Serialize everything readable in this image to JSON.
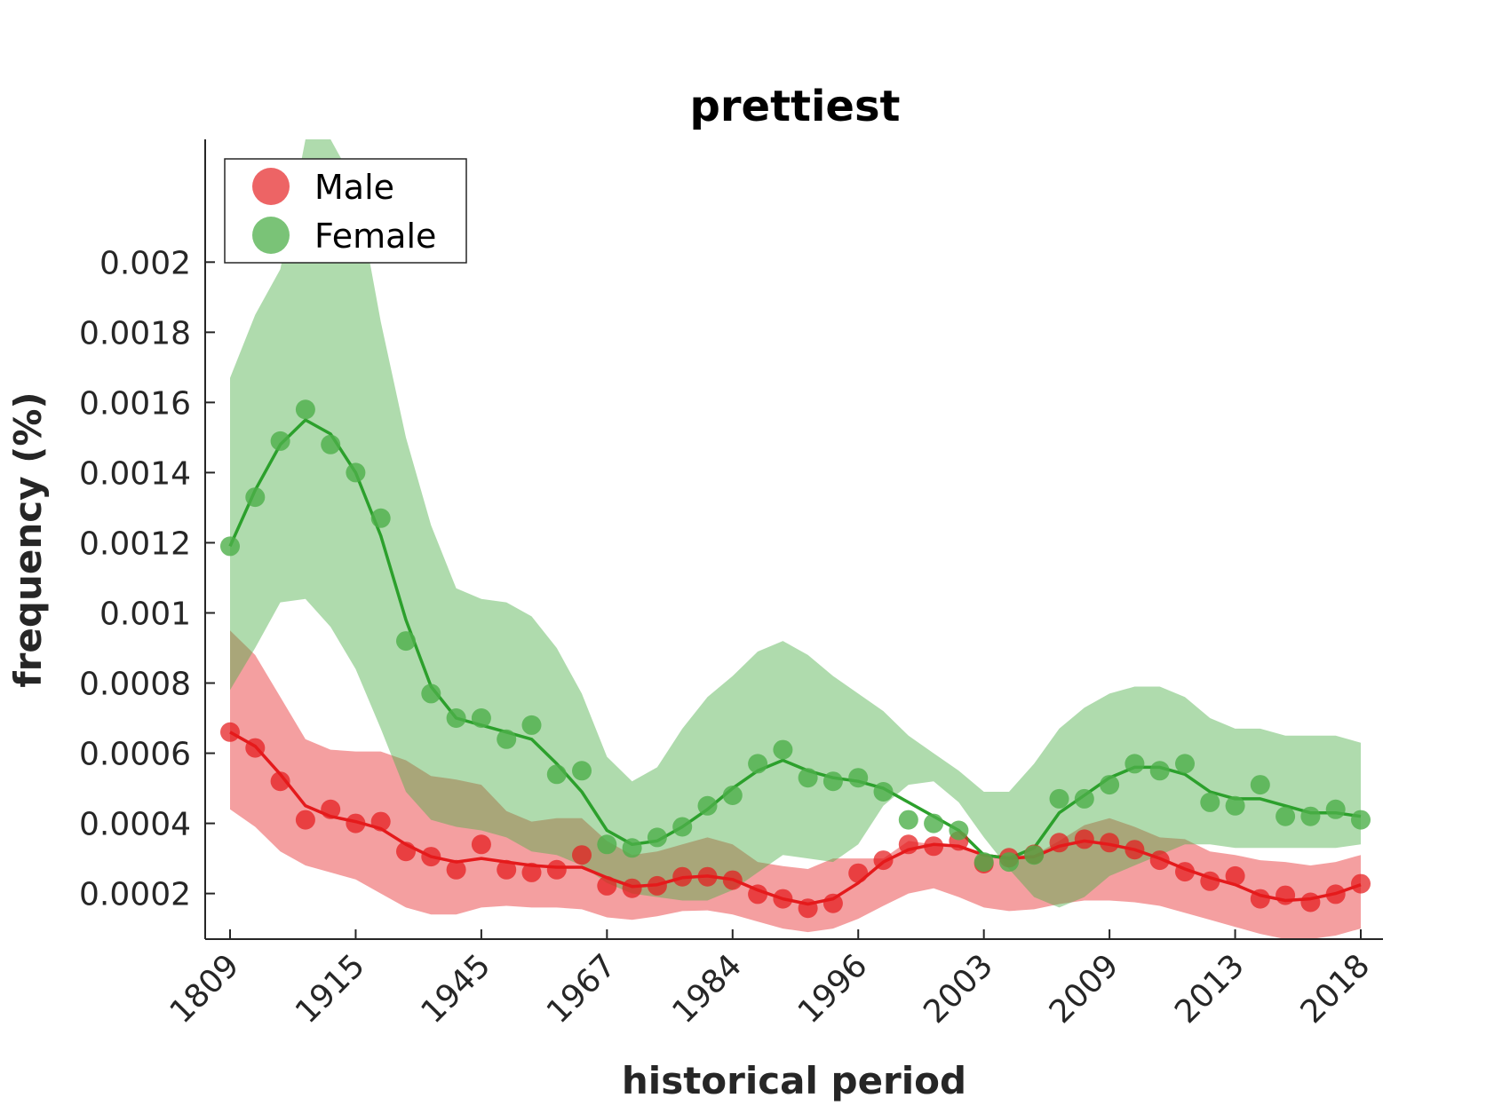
{
  "chart_data": {
    "type": "line",
    "title": "prettiest",
    "xlabel": "historical period",
    "ylabel": "frequency (%)",
    "x_tick_labels": [
      "1809",
      "1915",
      "1945",
      "1967",
      "1984",
      "1996",
      "2003",
      "2009",
      "2013",
      "2018"
    ],
    "y_ticks": [
      0.0002,
      0.0004,
      0.0006,
      0.0008,
      0.001,
      0.0012,
      0.0014,
      0.0016,
      0.0018,
      0.002
    ],
    "y_tick_labels": [
      "0.0002",
      "0.0004",
      "0.0006",
      "0.0008",
      "0.001",
      "0.0012",
      "0.0014",
      "0.0016",
      "0.0018",
      "0.002"
    ],
    "ylim": [
      7e-05,
      0.00235
    ],
    "x_index_range": [
      0,
      45
    ],
    "grid": false,
    "legend_position": "top-left",
    "series": [
      {
        "name": "Male",
        "color": "#e41a1c",
        "marker_color": "#e41a1c",
        "band_color": "#e41a1c",
        "points": [
          0.00066,
          0.000615,
          0.00052,
          0.00041,
          0.00044,
          0.0004,
          0.000405,
          0.00032,
          0.000305,
          0.000268,
          0.00034,
          0.000268,
          0.00026,
          0.000268,
          0.00031,
          0.000222,
          0.000215,
          0.000222,
          0.000248,
          0.000248,
          0.000238,
          0.000198,
          0.000185,
          0.000158,
          0.000172,
          0.000258,
          0.000295,
          0.00034,
          0.000335,
          0.00035,
          0.000285,
          0.000302,
          0.000312,
          0.000345,
          0.000355,
          0.000345,
          0.000325,
          0.000295,
          0.000262,
          0.000235,
          0.00025,
          0.000185,
          0.000195,
          0.000175,
          0.000198,
          0.000228
        ],
        "smooth": [
          0.00066,
          0.00062,
          0.00054,
          0.00045,
          0.00042,
          0.000405,
          0.000385,
          0.00034,
          0.000305,
          0.00029,
          0.0003,
          0.00029,
          0.00028,
          0.000275,
          0.000275,
          0.000245,
          0.00022,
          0.000225,
          0.000245,
          0.00025,
          0.00024,
          0.00021,
          0.000185,
          0.00017,
          0.000185,
          0.00023,
          0.00029,
          0.000325,
          0.00034,
          0.000335,
          0.00031,
          0.0003,
          0.000305,
          0.000335,
          0.00035,
          0.00034,
          0.000325,
          0.0003,
          0.00027,
          0.000245,
          0.000225,
          0.000195,
          0.00018,
          0.000185,
          0.0002,
          0.000225
        ],
        "band_upper": [
          0.00095,
          0.00088,
          0.00076,
          0.00064,
          0.00061,
          0.000605,
          0.000605,
          0.00058,
          0.000535,
          0.000525,
          0.00051,
          0.000435,
          0.000405,
          0.000415,
          0.000415,
          0.00035,
          0.00031,
          0.00032,
          0.00034,
          0.00036,
          0.00034,
          0.00029,
          0.000278,
          0.00027,
          0.0003,
          0.0003,
          0.0003,
          0.00035,
          0.00034,
          0.00033,
          0.00031,
          0.00031,
          0.00031,
          0.00035,
          0.000395,
          0.000415,
          0.00039,
          0.00036,
          0.000355,
          0.00032,
          0.00031,
          0.000295,
          0.00029,
          0.00028,
          0.00029,
          0.00031
        ],
        "band_lower": [
          0.00044,
          0.00039,
          0.00032,
          0.00028,
          0.00026,
          0.00024,
          0.0002,
          0.00016,
          0.00014,
          0.00014,
          0.00016,
          0.000165,
          0.00016,
          0.00016,
          0.000155,
          0.000132,
          0.000125,
          0.000135,
          0.00015,
          0.000152,
          0.00014,
          0.00012,
          0.0001,
          9e-05,
          0.0001,
          0.000128,
          0.000165,
          0.0002,
          0.000215,
          0.00019,
          0.00016,
          0.00015,
          0.000155,
          0.00017,
          0.00018,
          0.00018,
          0.000175,
          0.000165,
          0.000145,
          0.000125,
          0.000105,
          8.5e-05,
          7e-05,
          7e-05,
          8e-05,
          0.0001
        ]
      },
      {
        "name": "Female",
        "color": "#2ca02c",
        "marker_color": "#4daf4a",
        "band_color": "#4daf4a",
        "points": [
          0.00119,
          0.00133,
          0.00149,
          0.00158,
          0.00148,
          0.0014,
          0.00127,
          0.00092,
          0.00077,
          0.0007,
          0.0007,
          0.00064,
          0.00068,
          0.00054,
          0.00055,
          0.00034,
          0.00033,
          0.00036,
          0.00039,
          0.00045,
          0.00048,
          0.00057,
          0.00061,
          0.00053,
          0.00052,
          0.00053,
          0.00049,
          0.00041,
          0.0004,
          0.00038,
          0.00029,
          0.00029,
          0.00031,
          0.00047,
          0.00047,
          0.00051,
          0.00057,
          0.00055,
          0.00057,
          0.00046,
          0.00045,
          0.00051,
          0.00042,
          0.00042,
          0.00044,
          0.00041
        ],
        "smooth": [
          0.00119,
          0.00135,
          0.00148,
          0.00155,
          0.00151,
          0.0014,
          0.00122,
          0.00098,
          0.00079,
          0.0007,
          0.00068,
          0.00066,
          0.00064,
          0.00057,
          0.00049,
          0.00038,
          0.00034,
          0.00035,
          0.00039,
          0.00044,
          0.0005,
          0.00055,
          0.00058,
          0.00055,
          0.00053,
          0.00052,
          0.0005,
          0.00046,
          0.00042,
          0.00038,
          0.00031,
          0.0003,
          0.00033,
          0.00043,
          0.00048,
          0.00053,
          0.00056,
          0.00056,
          0.00054,
          0.00049,
          0.00047,
          0.00047,
          0.00045,
          0.00043,
          0.00043,
          0.00042
        ],
        "band_upper": [
          0.00167,
          0.00185,
          0.00198,
          0.00235,
          0.00236,
          0.00222,
          0.00183,
          0.0015,
          0.00125,
          0.00107,
          0.00104,
          0.00103,
          0.00099,
          0.0009,
          0.00077,
          0.00059,
          0.00052,
          0.00056,
          0.00067,
          0.00076,
          0.00082,
          0.00089,
          0.00092,
          0.00088,
          0.00082,
          0.00077,
          0.00072,
          0.00065,
          0.0006,
          0.00055,
          0.00049,
          0.00049,
          0.00057,
          0.00067,
          0.00073,
          0.00077,
          0.00079,
          0.00079,
          0.00076,
          0.0007,
          0.00067,
          0.00067,
          0.00065,
          0.00065,
          0.00065,
          0.00063
        ],
        "band_lower": [
          0.00078,
          0.0009,
          0.00103,
          0.00104,
          0.00096,
          0.00084,
          0.00067,
          0.00049,
          0.00041,
          0.00039,
          0.00038,
          0.00036,
          0.00032,
          0.00031,
          0.00028,
          0.00023,
          0.0002,
          0.00019,
          0.00018,
          0.00018,
          0.00021,
          0.00026,
          0.00031,
          0.0003,
          0.00029,
          0.00034,
          0.00045,
          0.00051,
          0.00052,
          0.00046,
          0.00036,
          0.00027,
          0.00019,
          0.00016,
          0.00019,
          0.00025,
          0.00028,
          0.00031,
          0.00034,
          0.00034,
          0.00033,
          0.00033,
          0.00033,
          0.00033,
          0.00033,
          0.00034
        ]
      }
    ]
  }
}
